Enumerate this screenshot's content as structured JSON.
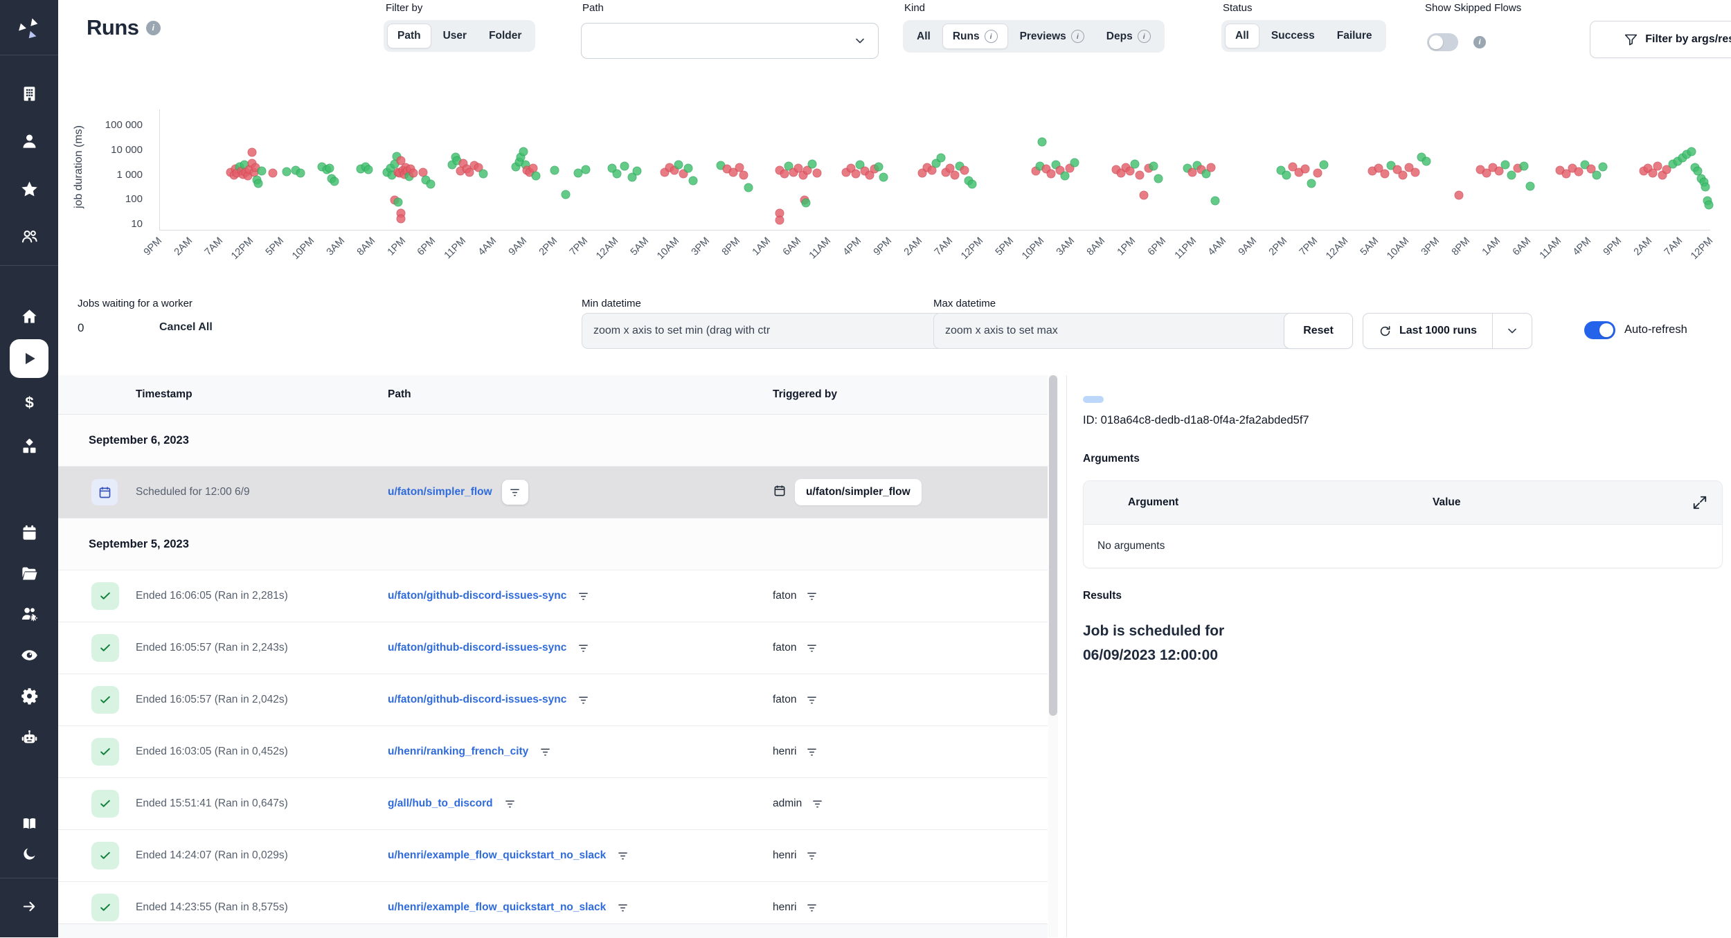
{
  "header": {
    "title": "Runs",
    "filter_by": {
      "label": "Filter by",
      "options": [
        "Path",
        "User",
        "Folder"
      ],
      "selected": "Path"
    },
    "path_select": {
      "label": "Path",
      "value": ""
    },
    "kind": {
      "label": "Kind",
      "options": [
        {
          "label": "All"
        },
        {
          "label": "Runs",
          "info": true
        },
        {
          "label": "Previews",
          "info": true
        },
        {
          "label": "Deps",
          "info": true
        }
      ],
      "selected": "Runs"
    },
    "status": {
      "label": "Status",
      "options": [
        {
          "label": "All"
        },
        {
          "label": "Success"
        },
        {
          "label": "Failure"
        }
      ],
      "selected": "All"
    },
    "show_skipped": {
      "label": "Show Skipped Flows",
      "enabled": false
    },
    "filter_args_button": "Filter by args/result"
  },
  "sidebar": {
    "top_icons": [
      "building-icon",
      "user-icon",
      "star-icon",
      "users-icon"
    ],
    "mid_icons": [
      "home-icon",
      "play-icon",
      "dollar-icon",
      "cubes-icon"
    ],
    "tool_icons": [
      "calendar-icon",
      "folder-icon",
      "user-group-gear-icon",
      "eye-icon",
      "gear-icon",
      "robot-icon"
    ],
    "bottom_icons": [
      "book-icon",
      "moon-icon"
    ],
    "footer_icons": [
      "arrow-right-icon"
    ],
    "selected": "play-icon"
  },
  "chart_data": {
    "type": "scatter",
    "ylabel": "job duration (ms)",
    "yscale": "log",
    "ylim": [
      10,
      100000
    ],
    "yticks": [
      "100 000",
      "10 000",
      "1 000",
      "100",
      "10"
    ],
    "ytick_values": [
      100000,
      10000,
      1000,
      100,
      10
    ],
    "xticks": [
      "9PM",
      "2AM",
      "7AM",
      "12PM",
      "5PM",
      "10PM",
      "3AM",
      "8AM",
      "1PM",
      "6PM",
      "11PM",
      "4AM",
      "9AM",
      "2PM",
      "7PM",
      "12AM",
      "5AM",
      "10AM",
      "3PM",
      "8PM",
      "1AM",
      "6AM",
      "11AM",
      "4PM",
      "9PM",
      "2AM",
      "7AM",
      "12PM",
      "5PM",
      "10PM",
      "3AM",
      "8AM",
      "1PM",
      "6PM",
      "11PM",
      "4AM",
      "9AM",
      "2PM",
      "7PM",
      "12AM",
      "5AM",
      "10AM",
      "3PM",
      "8PM",
      "1AM",
      "6AM",
      "11AM",
      "4PM",
      "9PM",
      "2AM",
      "7AM",
      "12PM"
    ],
    "series": [
      {
        "name": "success",
        "color": "#41bf6e"
      },
      {
        "name": "failure",
        "color": "#e4606b"
      }
    ],
    "points": [
      [
        0.046,
        1300,
        "r"
      ],
      [
        0.048,
        950,
        "r"
      ],
      [
        0.049,
        1700,
        "r"
      ],
      [
        0.05,
        1200,
        "r"
      ],
      [
        0.052,
        2100,
        "g"
      ],
      [
        0.053,
        1450,
        "r"
      ],
      [
        0.054,
        1050,
        "r"
      ],
      [
        0.055,
        2500,
        "g"
      ],
      [
        0.056,
        1300,
        "r"
      ],
      [
        0.057,
        900,
        "r"
      ],
      [
        0.058,
        1600,
        "r"
      ],
      [
        0.06,
        8000,
        "r"
      ],
      [
        0.06,
        3000,
        "r"
      ],
      [
        0.061,
        1250,
        "r"
      ],
      [
        0.062,
        1950,
        "r"
      ],
      [
        0.063,
        620,
        "g"
      ],
      [
        0.064,
        460,
        "g"
      ],
      [
        0.066,
        1400,
        "g"
      ],
      [
        0.073,
        1150,
        "r"
      ],
      [
        0.082,
        1350,
        "g"
      ],
      [
        0.088,
        1550,
        "g"
      ],
      [
        0.091,
        1200,
        "g"
      ],
      [
        0.105,
        2100,
        "g"
      ],
      [
        0.108,
        1650,
        "g"
      ],
      [
        0.11,
        1900,
        "g"
      ],
      [
        0.111,
        700,
        "g"
      ],
      [
        0.113,
        540,
        "g"
      ],
      [
        0.13,
        1750,
        "g"
      ],
      [
        0.133,
        2050,
        "g"
      ],
      [
        0.135,
        1600,
        "g"
      ],
      [
        0.147,
        1250,
        "g"
      ],
      [
        0.149,
        1850,
        "g"
      ],
      [
        0.15,
        1000,
        "g"
      ],
      [
        0.152,
        2700,
        "g"
      ],
      [
        0.153,
        5500,
        "g"
      ],
      [
        0.154,
        1300,
        "r"
      ],
      [
        0.155,
        1150,
        "r"
      ],
      [
        0.156,
        3800,
        "r"
      ],
      [
        0.157,
        1500,
        "r"
      ],
      [
        0.158,
        1050,
        "r"
      ],
      [
        0.159,
        2000,
        "r"
      ],
      [
        0.16,
        1400,
        "r"
      ],
      [
        0.161,
        880,
        "g"
      ],
      [
        0.162,
        1700,
        "r"
      ],
      [
        0.164,
        1200,
        "r"
      ],
      [
        0.152,
        95,
        "r"
      ],
      [
        0.154,
        78,
        "g"
      ],
      [
        0.156,
        28,
        "r"
      ],
      [
        0.156,
        17,
        "r"
      ],
      [
        0.17,
        1250,
        "r"
      ],
      [
        0.172,
        640,
        "g"
      ],
      [
        0.175,
        430,
        "g"
      ],
      [
        0.189,
        2600,
        "g"
      ],
      [
        0.191,
        5200,
        "g"
      ],
      [
        0.192,
        3700,
        "g"
      ],
      [
        0.194,
        1400,
        "r"
      ],
      [
        0.196,
        2900,
        "r"
      ],
      [
        0.198,
        1750,
        "r"
      ],
      [
        0.2,
        1300,
        "r"
      ],
      [
        0.203,
        2400,
        "r"
      ],
      [
        0.206,
        2000,
        "r"
      ],
      [
        0.209,
        1100,
        "g"
      ],
      [
        0.23,
        2100,
        "g"
      ],
      [
        0.232,
        3400,
        "g"
      ],
      [
        0.233,
        5300,
        "g"
      ],
      [
        0.235,
        8800,
        "g"
      ],
      [
        0.236,
        2600,
        "g"
      ],
      [
        0.237,
        1500,
        "r"
      ],
      [
        0.239,
        1250,
        "r"
      ],
      [
        0.241,
        1800,
        "r"
      ],
      [
        0.243,
        900,
        "g"
      ],
      [
        0.255,
        1500,
        "g"
      ],
      [
        0.262,
        160,
        "g"
      ],
      [
        0.27,
        1200,
        "g"
      ],
      [
        0.275,
        1600,
        "g"
      ],
      [
        0.292,
        1900,
        "g"
      ],
      [
        0.295,
        1100,
        "g"
      ],
      [
        0.3,
        2200,
        "g"
      ],
      [
        0.305,
        800,
        "g"
      ],
      [
        0.308,
        1400,
        "g"
      ],
      [
        0.326,
        1300,
        "r"
      ],
      [
        0.329,
        2000,
        "r"
      ],
      [
        0.332,
        1500,
        "r"
      ],
      [
        0.335,
        2600,
        "g"
      ],
      [
        0.338,
        1100,
        "r"
      ],
      [
        0.341,
        1800,
        "g"
      ],
      [
        0.344,
        600,
        "g"
      ],
      [
        0.362,
        2400,
        "g"
      ],
      [
        0.366,
        1700,
        "r"
      ],
      [
        0.37,
        1300,
        "r"
      ],
      [
        0.374,
        2000,
        "r"
      ],
      [
        0.377,
        1000,
        "r"
      ],
      [
        0.38,
        300,
        "g"
      ],
      [
        0.4,
        1500,
        "r"
      ],
      [
        0.403,
        1100,
        "r"
      ],
      [
        0.406,
        2300,
        "g"
      ],
      [
        0.409,
        1300,
        "r"
      ],
      [
        0.412,
        1850,
        "r"
      ],
      [
        0.415,
        950,
        "r"
      ],
      [
        0.418,
        1500,
        "r"
      ],
      [
        0.421,
        2700,
        "g"
      ],
      [
        0.424,
        1200,
        "r"
      ],
      [
        0.4,
        28,
        "r"
      ],
      [
        0.4,
        15,
        "r"
      ],
      [
        0.416,
        95,
        "r"
      ],
      [
        0.417,
        72,
        "g"
      ],
      [
        0.443,
        1300,
        "r"
      ],
      [
        0.446,
        1900,
        "r"
      ],
      [
        0.449,
        1100,
        "r"
      ],
      [
        0.452,
        2500,
        "g"
      ],
      [
        0.455,
        1400,
        "r"
      ],
      [
        0.458,
        1000,
        "r"
      ],
      [
        0.461,
        1700,
        "r"
      ],
      [
        0.464,
        2100,
        "g"
      ],
      [
        0.467,
        800,
        "g"
      ],
      [
        0.492,
        1200,
        "r"
      ],
      [
        0.495,
        2000,
        "r"
      ],
      [
        0.498,
        1500,
        "r"
      ],
      [
        0.501,
        3000,
        "g"
      ],
      [
        0.504,
        5000,
        "g"
      ],
      [
        0.507,
        1300,
        "r"
      ],
      [
        0.51,
        1800,
        "r"
      ],
      [
        0.513,
        1000,
        "r"
      ],
      [
        0.516,
        2300,
        "g"
      ],
      [
        0.519,
        1500,
        "r"
      ],
      [
        0.522,
        600,
        "g"
      ],
      [
        0.524,
        420,
        "g"
      ],
      [
        0.565,
        1400,
        "r"
      ],
      [
        0.568,
        2200,
        "g"
      ],
      [
        0.569,
        21500,
        "g"
      ],
      [
        0.572,
        1700,
        "r"
      ],
      [
        0.575,
        1100,
        "r"
      ],
      [
        0.578,
        2600,
        "g"
      ],
      [
        0.581,
        1500,
        "r"
      ],
      [
        0.584,
        900,
        "g"
      ],
      [
        0.587,
        1900,
        "r"
      ],
      [
        0.59,
        3200,
        "g"
      ],
      [
        0.617,
        1600,
        "r"
      ],
      [
        0.62,
        1150,
        "r"
      ],
      [
        0.623,
        2000,
        "r"
      ],
      [
        0.626,
        1400,
        "r"
      ],
      [
        0.629,
        2800,
        "g"
      ],
      [
        0.632,
        1000,
        "r"
      ],
      [
        0.635,
        150,
        "r"
      ],
      [
        0.638,
        1800,
        "r"
      ],
      [
        0.641,
        2200,
        "g"
      ],
      [
        0.644,
        700,
        "g"
      ],
      [
        0.663,
        1900,
        "g"
      ],
      [
        0.666,
        1300,
        "r"
      ],
      [
        0.669,
        2400,
        "g"
      ],
      [
        0.672,
        1600,
        "r"
      ],
      [
        0.675,
        1100,
        "g"
      ],
      [
        0.678,
        2000,
        "r"
      ],
      [
        0.681,
        90,
        "g"
      ],
      [
        0.723,
        1500,
        "g"
      ],
      [
        0.727,
        1000,
        "g"
      ],
      [
        0.731,
        2100,
        "r"
      ],
      [
        0.735,
        1300,
        "r"
      ],
      [
        0.739,
        1750,
        "r"
      ],
      [
        0.743,
        450,
        "g"
      ],
      [
        0.747,
        1200,
        "r"
      ],
      [
        0.751,
        2600,
        "g"
      ],
      [
        0.782,
        1400,
        "r"
      ],
      [
        0.786,
        1900,
        "r"
      ],
      [
        0.79,
        1100,
        "r"
      ],
      [
        0.794,
        2400,
        "g"
      ],
      [
        0.798,
        1600,
        "r"
      ],
      [
        0.802,
        950,
        "r"
      ],
      [
        0.806,
        2000,
        "r"
      ],
      [
        0.81,
        1300,
        "r"
      ],
      [
        0.814,
        5200,
        "g"
      ],
      [
        0.817,
        3600,
        "g"
      ],
      [
        0.838,
        150,
        "r"
      ],
      [
        0.852,
        1600,
        "r"
      ],
      [
        0.856,
        1200,
        "r"
      ],
      [
        0.86,
        2000,
        "r"
      ],
      [
        0.864,
        1400,
        "r"
      ],
      [
        0.868,
        2600,
        "g"
      ],
      [
        0.872,
        1000,
        "g"
      ],
      [
        0.876,
        1800,
        "r"
      ],
      [
        0.88,
        2300,
        "g"
      ],
      [
        0.884,
        350,
        "g"
      ],
      [
        0.903,
        1500,
        "r"
      ],
      [
        0.907,
        1100,
        "r"
      ],
      [
        0.911,
        1900,
        "r"
      ],
      [
        0.915,
        1350,
        "r"
      ],
      [
        0.919,
        2500,
        "g"
      ],
      [
        0.923,
        1700,
        "r"
      ],
      [
        0.927,
        950,
        "g"
      ],
      [
        0.931,
        2100,
        "g"
      ],
      [
        0.957,
        1400,
        "r"
      ],
      [
        0.96,
        1800,
        "r"
      ],
      [
        0.963,
        1200,
        "r"
      ],
      [
        0.966,
        2200,
        "r"
      ],
      [
        0.969,
        1000,
        "r"
      ],
      [
        0.972,
        1600,
        "r"
      ],
      [
        0.976,
        2700,
        "g"
      ],
      [
        0.979,
        3600,
        "g"
      ],
      [
        0.982,
        5000,
        "g"
      ],
      [
        0.985,
        6800,
        "g"
      ],
      [
        0.988,
        9000,
        "g"
      ],
      [
        0.99,
        2000,
        "g"
      ],
      [
        0.992,
        1400,
        "g"
      ],
      [
        0.994,
        700,
        "g"
      ],
      [
        0.996,
        500,
        "g"
      ],
      [
        0.997,
        320,
        "g"
      ],
      [
        0.998,
        90,
        "g"
      ],
      [
        0.999,
        60,
        "g"
      ]
    ]
  },
  "controls": {
    "jobs_waiting_label": "Jobs waiting for a worker",
    "jobs_waiting_count": "0",
    "cancel_all": "Cancel All",
    "min_datetime": {
      "label": "Min datetime",
      "placeholder": "zoom x axis to set min (drag with ctr"
    },
    "max_datetime": {
      "label": "Max datetime",
      "placeholder": "zoom x axis to set max"
    },
    "reset": "Reset",
    "last_runs": "Last 1000 runs",
    "auto_refresh": "Auto-refresh",
    "auto_refresh_on": true
  },
  "table": {
    "columns": [
      "Timestamp",
      "Path",
      "Triggered by"
    ],
    "groups": [
      {
        "date": "September 6, 2023",
        "rows": [
          {
            "status": "scheduled",
            "selected": true,
            "timestamp": "Scheduled for 12:00 6/9",
            "path": "u/faton/simpler_flow",
            "triggered_by": "u/faton/simpler_flow"
          }
        ]
      },
      {
        "date": "September 5, 2023",
        "rows": [
          {
            "status": "success",
            "timestamp": "Ended 16:06:05 (Ran in 2,281s)",
            "path": "u/faton/github-discord-issues-sync",
            "triggered_by": "faton"
          },
          {
            "status": "success",
            "timestamp": "Ended 16:05:57 (Ran in 2,243s)",
            "path": "u/faton/github-discord-issues-sync",
            "triggered_by": "faton"
          },
          {
            "status": "success",
            "timestamp": "Ended 16:05:57 (Ran in 2,042s)",
            "path": "u/faton/github-discord-issues-sync",
            "triggered_by": "faton"
          },
          {
            "status": "success",
            "timestamp": "Ended 16:03:05 (Ran in 0,452s)",
            "path": "u/henri/ranking_french_city",
            "triggered_by": "henri"
          },
          {
            "status": "success",
            "timestamp": "Ended 15:51:41 (Ran in 0,647s)",
            "path": "g/all/hub_to_discord",
            "triggered_by": "admin"
          },
          {
            "status": "success",
            "timestamp": "Ended 14:24:07 (Ran in 0,029s)",
            "path": "u/henri/example_flow_quickstart_no_slack",
            "triggered_by": "henri"
          },
          {
            "status": "success",
            "timestamp": "Ended 14:23:55 (Ran in 8,575s)",
            "path": "u/henri/example_flow_quickstart_no_slack",
            "triggered_by": "henri"
          }
        ]
      }
    ]
  },
  "details": {
    "id_line": "ID: 018a64c8-dedb-d1a8-0f4a-2fa2abded5f7",
    "arguments_label": "Arguments",
    "argument_col": "Argument",
    "value_col": "Value",
    "no_arguments": "No arguments",
    "results_label": "Results",
    "result_line1": "Job is scheduled for",
    "result_line2": "06/09/2023 12:00:00"
  },
  "colors": {
    "sidebar_bg": "#262d3c",
    "link_blue": "#2f6bdb",
    "toggle_on": "#2563eb",
    "dot_green": "#41bf6e",
    "dot_red": "#e4606b",
    "check_green": "#15803d",
    "selected_row_bg": "#e1e1e4"
  }
}
